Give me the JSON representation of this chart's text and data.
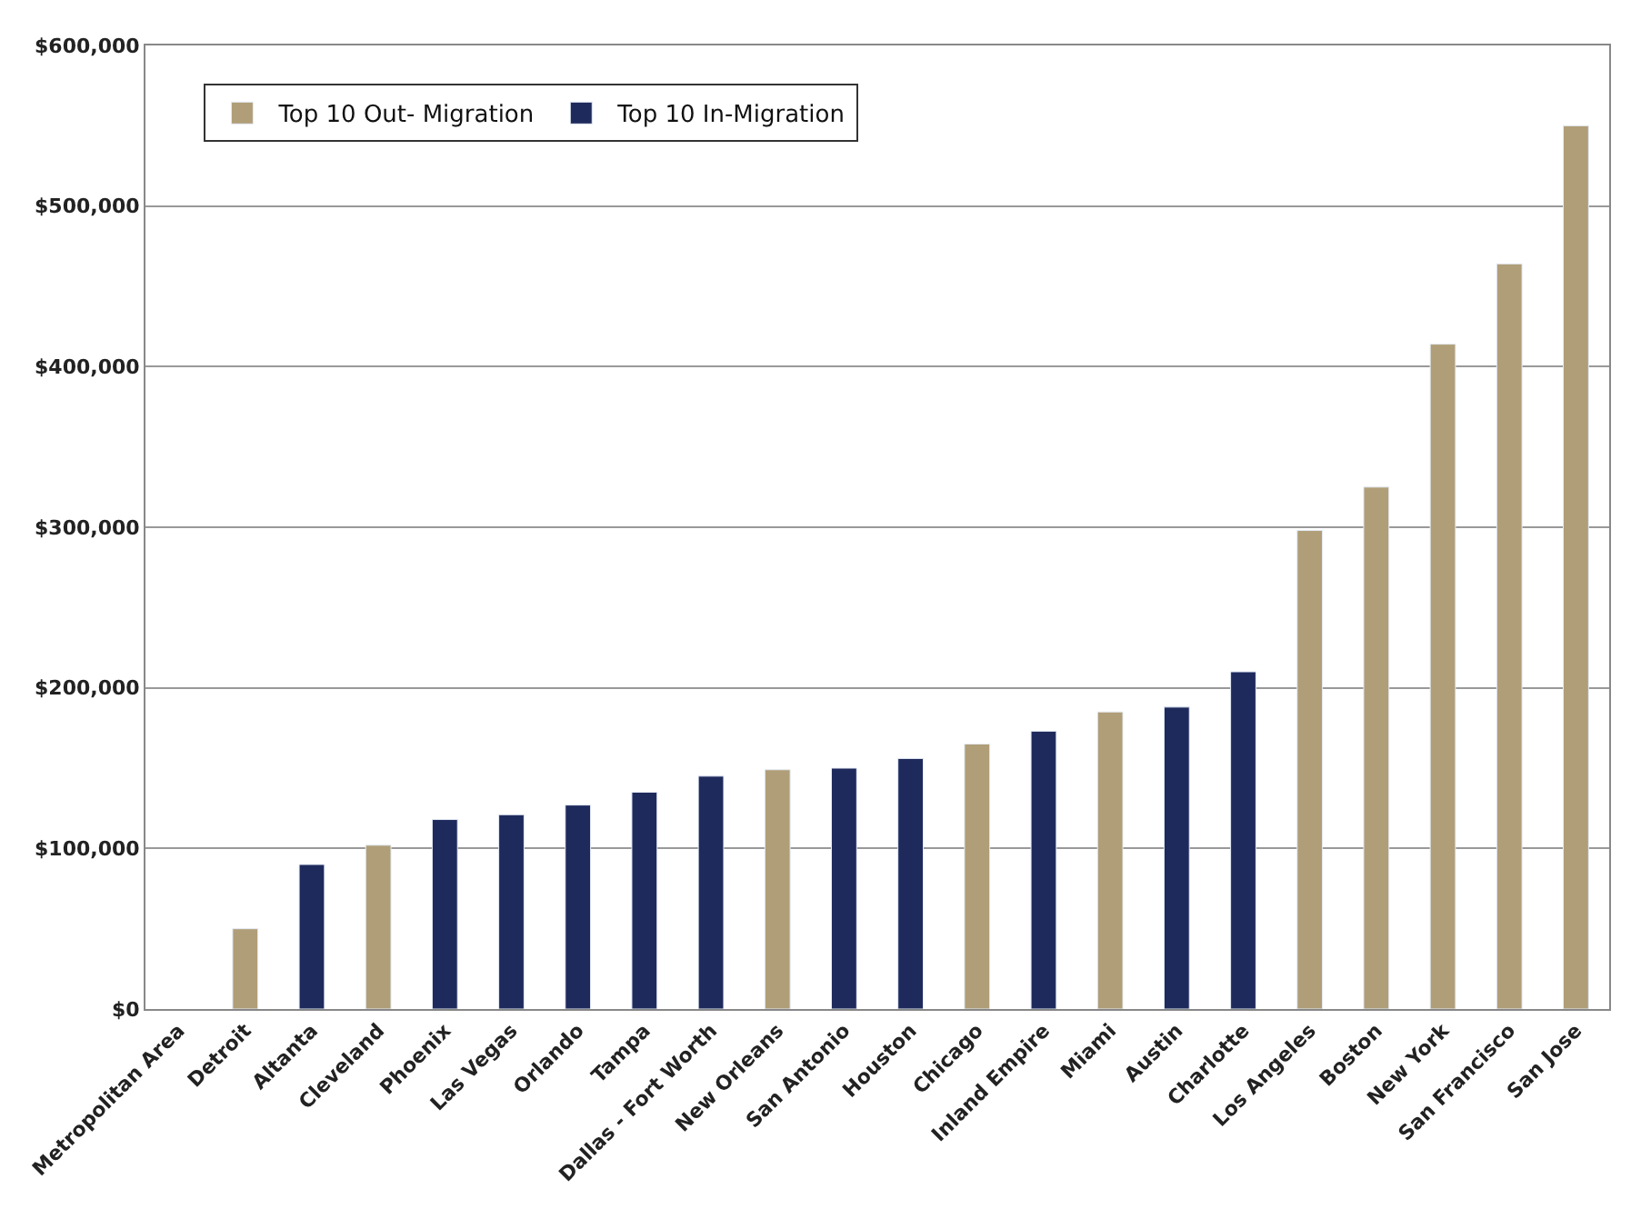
{
  "chart_data": {
    "type": "bar",
    "categories": [
      "Metropolitan Area",
      "Detroit",
      "Altanta",
      "Cleveland",
      "Phoenix",
      "Las Vegas",
      "Orlando",
      "Tampa",
      "Dallas - Fort Worth",
      "New Orleans",
      "San Antonio",
      "Houston",
      "Chicago",
      "Inland Empire",
      "Miami",
      "Austin",
      "Charlotte",
      "Los Angeles",
      "Boston",
      "New York",
      "San Francisco",
      "San Jose"
    ],
    "series": [
      {
        "name": "Top 10 Out- Migration",
        "color": "#b09e78",
        "values": [
          null,
          50000,
          null,
          102000,
          null,
          null,
          null,
          null,
          null,
          149000,
          null,
          null,
          165000,
          null,
          185000,
          null,
          null,
          298000,
          325000,
          414000,
          464000,
          550000
        ]
      },
      {
        "name": "Top 10 In-Migration",
        "color": "#1f2a5c",
        "values": [
          null,
          null,
          90000,
          null,
          118000,
          121000,
          127000,
          135000,
          145000,
          null,
          150000,
          156000,
          null,
          173000,
          null,
          188000,
          210000,
          null,
          null,
          null,
          null,
          null
        ]
      }
    ],
    "ylim": [
      0,
      600000
    ],
    "yticks": [
      {
        "value": 0,
        "label": "$0"
      },
      {
        "value": 100000,
        "label": "$100,000"
      },
      {
        "value": 200000,
        "label": "$200,000"
      },
      {
        "value": 300000,
        "label": "$300,000"
      },
      {
        "value": 400000,
        "label": "$400,000"
      },
      {
        "value": 500000,
        "label": "$500,000"
      },
      {
        "value": 600000,
        "label": "$600,000"
      }
    ],
    "grid": "y",
    "legend": "top left"
  }
}
